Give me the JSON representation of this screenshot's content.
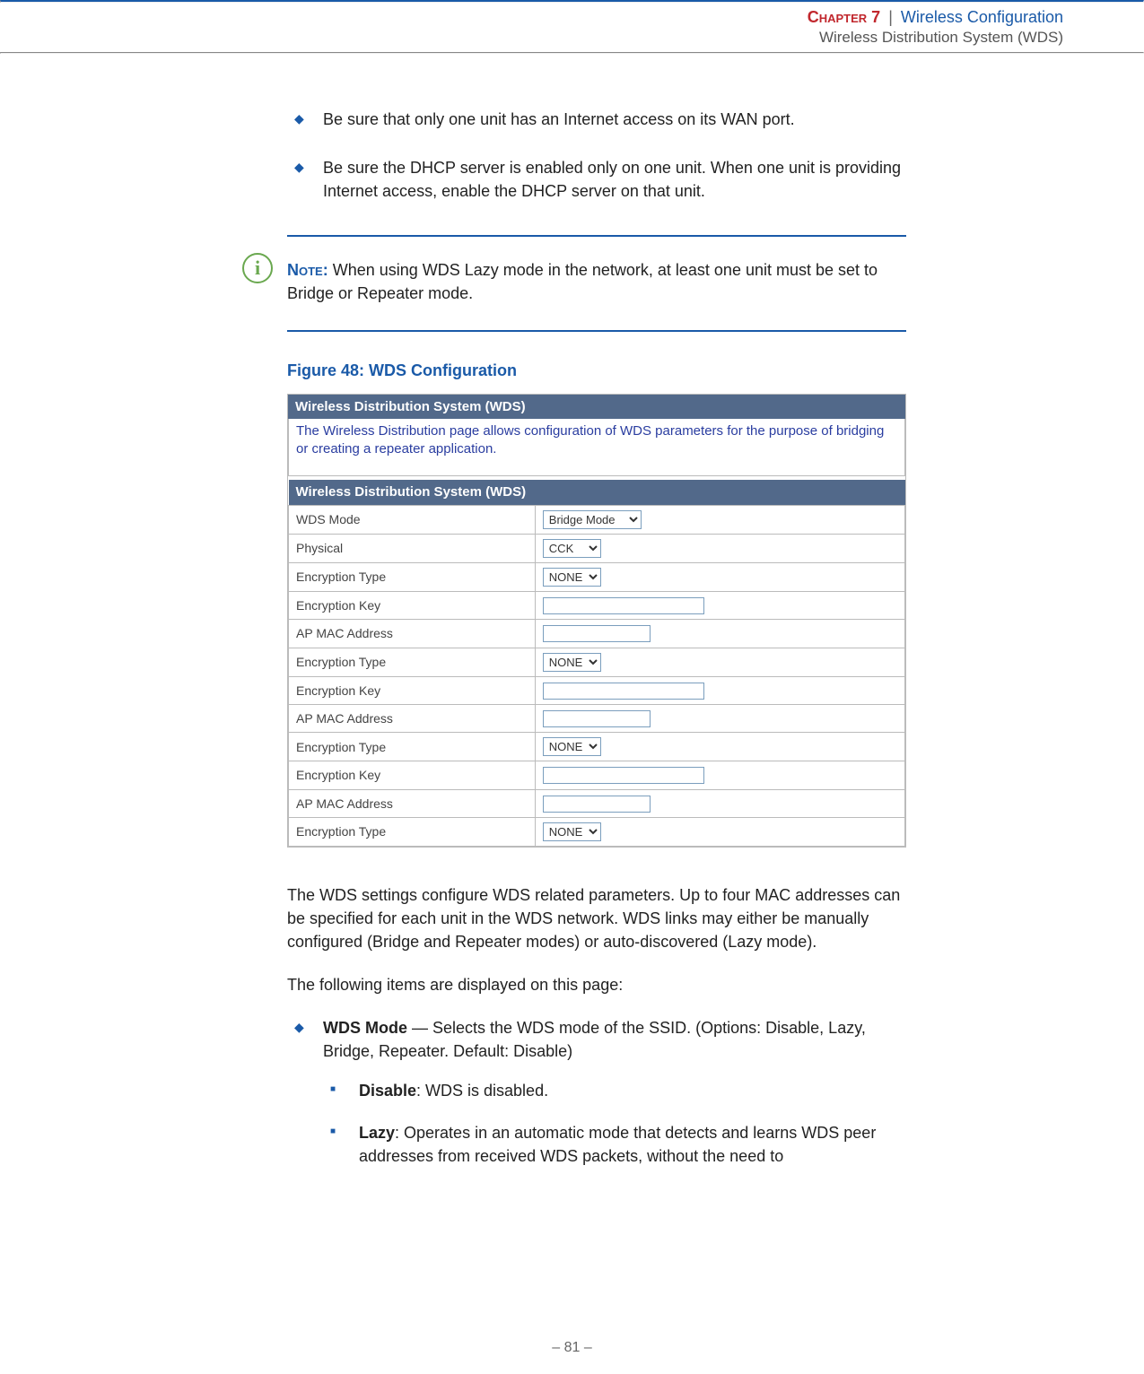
{
  "header": {
    "chapter_label": "Chapter 7",
    "separator": "|",
    "title": "Wireless Configuration",
    "subtitle": "Wireless Distribution System (WDS)"
  },
  "bullets": [
    "Be sure that only one unit has an Internet access on its WAN port.",
    "Be sure the DHCP server is enabled only on one unit. When one unit is providing Internet access, enable the DHCP server on that unit."
  ],
  "note": {
    "icon_glyph": "i",
    "label": "Note:",
    "text": " When using WDS Lazy mode in the network, at least one unit must be set to Bridge or Repeater mode."
  },
  "figure": {
    "caption": "Figure 48:  WDS Configuration"
  },
  "screenshot": {
    "top_header": "Wireless Distribution System (WDS)",
    "description": "The Wireless Distribution page allows configuration of WDS parameters for the purpose of bridging or creating a repeater application.",
    "section_header": "Wireless Distribution System (WDS)",
    "rows": [
      {
        "label": "WDS Mode",
        "type": "select",
        "value": "Bridge Mode",
        "cls": "sel-lg"
      },
      {
        "label": "Physical",
        "type": "select",
        "value": "CCK",
        "cls": "sel-sm"
      },
      {
        "label": "Encryption Type",
        "type": "select",
        "value": "NONE",
        "cls": "sel-sm"
      },
      {
        "label": "Encryption Key",
        "type": "text",
        "value": "",
        "cls": "w-wide"
      },
      {
        "label": "AP MAC Address",
        "type": "text",
        "value": "",
        "cls": "w-med"
      },
      {
        "label": "Encryption Type",
        "type": "select",
        "value": "NONE",
        "cls": "sel-sm"
      },
      {
        "label": "Encryption Key",
        "type": "text",
        "value": "",
        "cls": "w-wide"
      },
      {
        "label": "AP MAC Address",
        "type": "text",
        "value": "",
        "cls": "w-med"
      },
      {
        "label": "Encryption Type",
        "type": "select",
        "value": "NONE",
        "cls": "sel-sm"
      },
      {
        "label": "Encryption Key",
        "type": "text",
        "value": "",
        "cls": "w-wide"
      },
      {
        "label": "AP MAC Address",
        "type": "text",
        "value": "",
        "cls": "w-med"
      },
      {
        "label": "Encryption Type",
        "type": "select",
        "value": "NONE",
        "cls": "sel-sm"
      }
    ]
  },
  "body": {
    "p1": "The WDS settings configure WDS related parameters. Up to four MAC addresses can be specified for each unit in the WDS network. WDS links may either be manually configured (Bridge and Repeater modes) or auto-discovered (Lazy mode).",
    "p2": "The following items are displayed on this page:"
  },
  "items": {
    "wds_mode_label": "WDS Mode",
    "wds_mode_text": " — Selects the WDS mode of the SSID. (Options: Disable, Lazy, Bridge, Repeater. Default: Disable)",
    "disable_label": "Disable",
    "disable_text": ": WDS is disabled.",
    "lazy_label": "Lazy",
    "lazy_text": ": Operates in an automatic mode that detects and learns WDS peer addresses from received WDS packets, without the need to"
  },
  "footer": {
    "page_number": "–  81  –"
  },
  "colors": {
    "accent_blue": "#1a5aa8",
    "chapter_red": "#c1272d",
    "panel_header_bg": "#52698a",
    "panel_desc_text": "#2a3da0",
    "note_green": "#6aa84f",
    "border_gray": "#bbb"
  }
}
